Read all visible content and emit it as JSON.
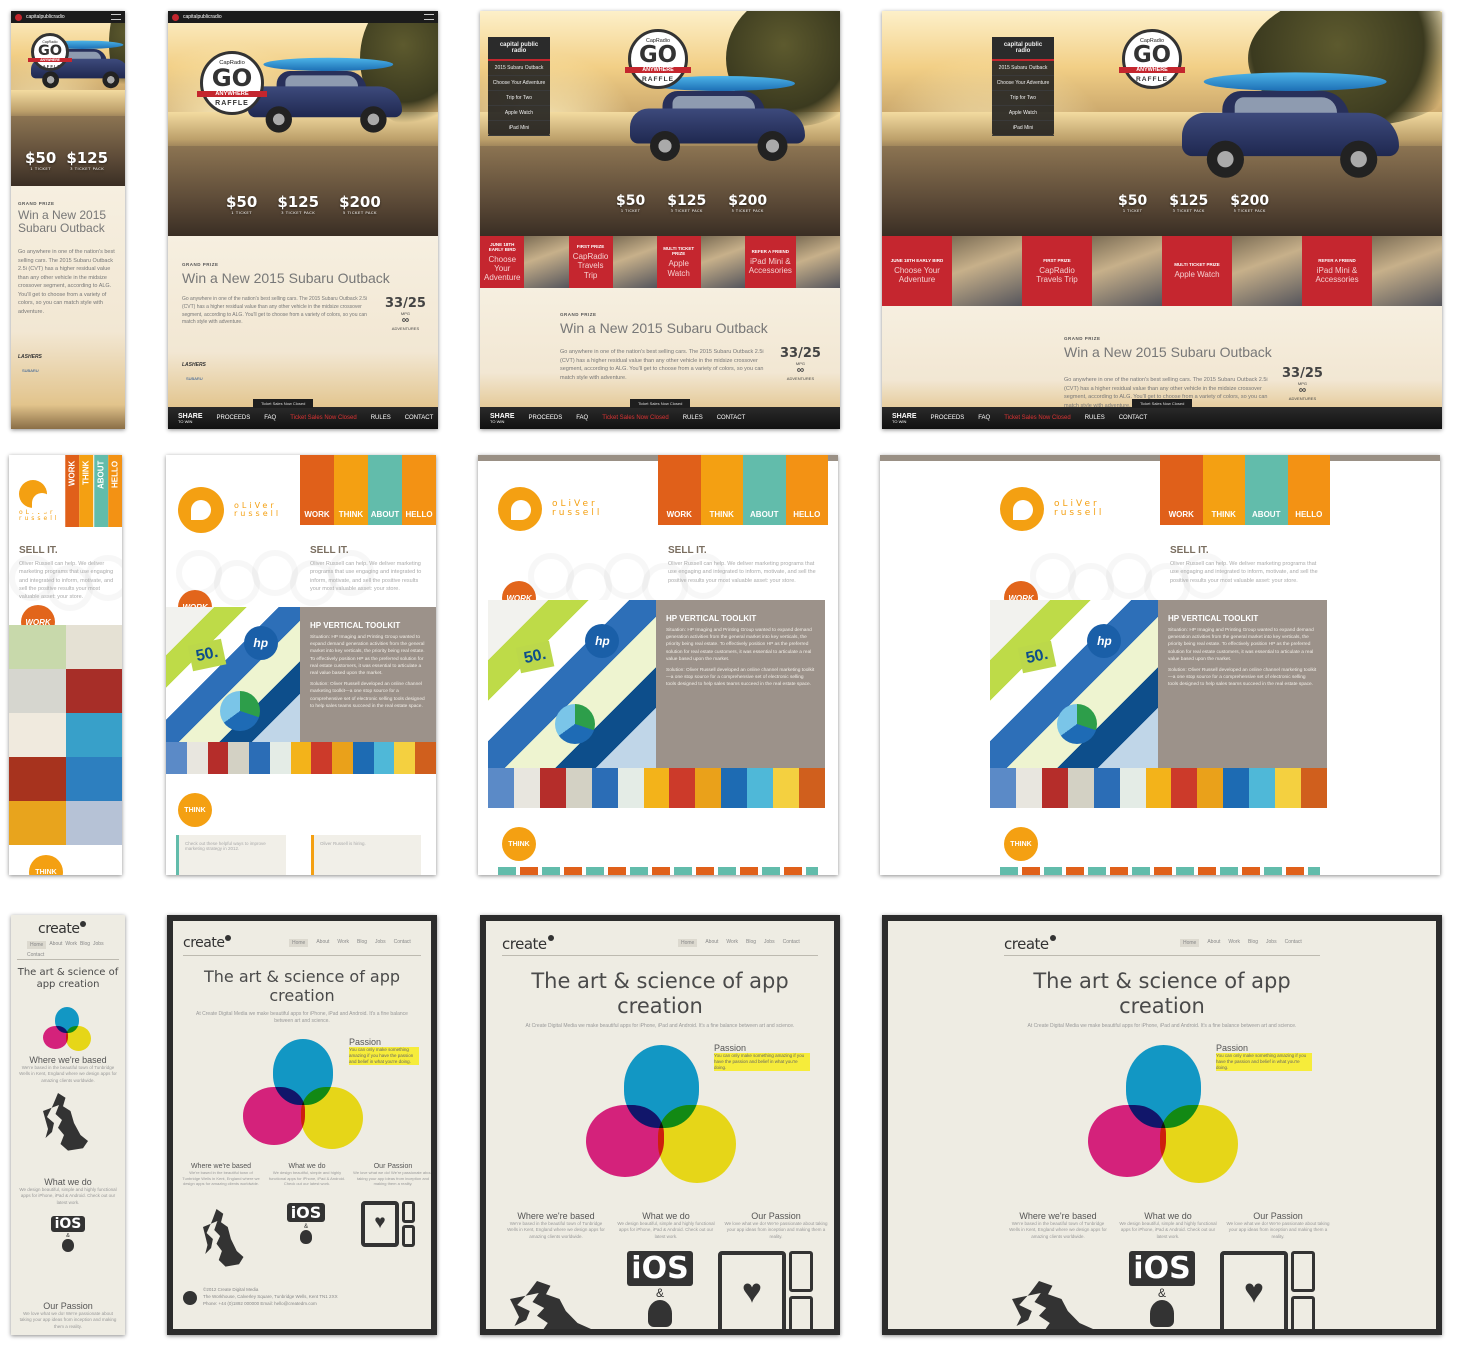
{
  "capital_radio": {
    "brand": "capitalpublicradio",
    "menu_brand": "capital public radio",
    "logo_small": "CapRadio",
    "logo_go": "GO",
    "logo_ribbon": "ANYWHERE",
    "logo_raffle": "RAFFLE",
    "prices": [
      {
        "amount": "$50",
        "label": "1 TICKET"
      },
      {
        "amount": "$125",
        "label": "3 TICKET PACK"
      },
      {
        "amount": "$200",
        "label": "5 TICKET PACK"
      }
    ],
    "grand_prize_label": "GRAND PRIZE",
    "headline": "Win a New 2015 Subaru Outback",
    "headline_short": "Win a New 2015 Subaru Outback",
    "body": "Go anywhere in one of the nation's best selling cars. The 2015 Subaru Outback 2.5i (CVT) has a higher residual value than any other vehicle in the midsize crossover segment, according to ALG. You'll get to choose from a variety of colors, so you can match style with adventure.",
    "mpg_value": "33/25",
    "mpg_label": "MPG",
    "infinity": "∞",
    "adventures_label": "ADVENTURES",
    "dealer": "LASHERS",
    "dealer_sub": "SUBARU",
    "share": "SHARE",
    "share_sub": "TO WIN",
    "nav": [
      "PROCEEDS",
      "FAQ",
      "Ticket Sales Now Closed",
      "RULES",
      "CONTACT"
    ],
    "closed_notice": "Ticket Sales Now Closed",
    "menu_items": [
      "2015 Subaru Outback",
      "Choose Your Adventure",
      "Trip for Two",
      "Apple Watch",
      "iPad Mini"
    ],
    "tiles": [
      {
        "kind": "JUNE 18TH EARLY BIRD",
        "label": "Choose Your Adventure"
      },
      {
        "kind": "FIRST PRIZE",
        "label": "CapRadio Travels Trip"
      },
      {
        "kind": "MULTI TICKET PRIZE",
        "label": "Apple Watch"
      },
      {
        "kind": "REFER A FRIEND",
        "label": "iPad Mini & Accessories"
      }
    ]
  },
  "oliver_russell": {
    "logo_line1": "oLiVer",
    "logo_line2": "russell",
    "nav": [
      "WORK",
      "THINK",
      "ABOUT",
      "HELLO"
    ],
    "nav_colors": [
      "#e0601a",
      "#f4a012",
      "#62bcab",
      "#f39214"
    ],
    "sell_title": "SELL IT.",
    "sell_body": "Oliver Russell can help. We deliver marketing programs that use engaging and integrated to inform, motivate, and sell the positive results your most valuable asset: your store.",
    "work_badge": "WORK",
    "think_badge": "THINK",
    "feature_title": "HP VERTICAL TOOLKIT",
    "feature_situation": "Situation: HP Imaging and Printing Group wanted to expand demand generation activities from the general market into key verticals, the priority being real estate. To effectively position HP as the preferred solution for real estate customers, it was essential to articulate a real value based upon the market.",
    "feature_solution": "Solution: Oliver Russell developed an online channel marketing toolkit—a one stop source for a comprehensive set of electronic selling tools designed to help sales teams succeed in the real estate space.",
    "fifty": "50.",
    "think_card1": "Check out these helpful ways to improve marketing strategy in 2012.",
    "think_card2": "Oliver Russell is hiring."
  },
  "create": {
    "logo": "create",
    "nav": [
      "Home",
      "About",
      "Work",
      "Blog",
      "Jobs",
      "Contact"
    ],
    "headline": "The art & science of app creation",
    "sub": "At Create Digital Media we make beautiful apps for iPhone, iPad and Android. It's a fine balance between art and science.",
    "passion_title": "Passion",
    "passion_hl": "You can only make something amazing if you have the passion and belief in what you're doing.",
    "col1_title": "Where we're based",
    "col1_body": "We're based in the beautiful town of Tunbridge Wells in Kent, England where we design apps for amazing clients worldwide.",
    "col2_title": "What we do",
    "col2_body": "We design beautiful, simple and highly functional apps for iPhone, iPad & Android. Check out our latest work.",
    "col3_title": "Our Passion",
    "col3_body": "We love what we do! We're passionate about taking your app ideas from inception and making them a reality.",
    "ios": "iOS",
    "amp": "&",
    "footer1": "©2012 Create Digital Media",
    "footer2": "The Workhouse, Calverley Square, Tunbridge Wells, Kent TN1 2XX",
    "footer3": "Phone: +44 (0)1892 000000 Email: hello@createdm.com"
  },
  "colors": {
    "capradio_red": "#c4262e",
    "or_orange": "#f4a012",
    "or_taupe": "#9c928a",
    "create_bg": "#eeece3",
    "cyan": "#13a3dc",
    "magenta": "#e4248a",
    "yellow": "#f7e81a"
  }
}
